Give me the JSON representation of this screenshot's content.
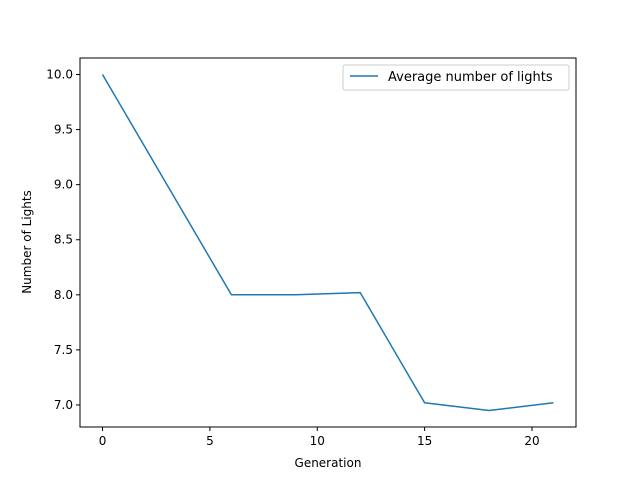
{
  "chart_data": {
    "type": "line",
    "xlabel": "Generation",
    "ylabel": "Number of Lights",
    "xlim": [
      -1.05,
      22.05
    ],
    "ylim": [
      6.8,
      10.15
    ],
    "xticks": [
      0,
      5,
      10,
      15,
      20
    ],
    "yticks": [
      7.0,
      7.5,
      8.0,
      8.5,
      9.0,
      9.5,
      10.0
    ],
    "xtick_labels": [
      "0",
      "5",
      "10",
      "15",
      "20"
    ],
    "ytick_labels": [
      "7.0",
      "7.5",
      "8.0",
      "8.5",
      "9.0",
      "9.5",
      "10.0"
    ],
    "grid": false,
    "legend_position": "top-right",
    "series": [
      {
        "name": "Average number of lights",
        "color": "#1f77b4",
        "x": [
          0,
          3,
          6,
          9,
          12,
          15,
          18,
          21
        ],
        "y": [
          10.0,
          9.0,
          8.0,
          8.0,
          8.02,
          7.02,
          6.95,
          7.02
        ]
      }
    ]
  }
}
